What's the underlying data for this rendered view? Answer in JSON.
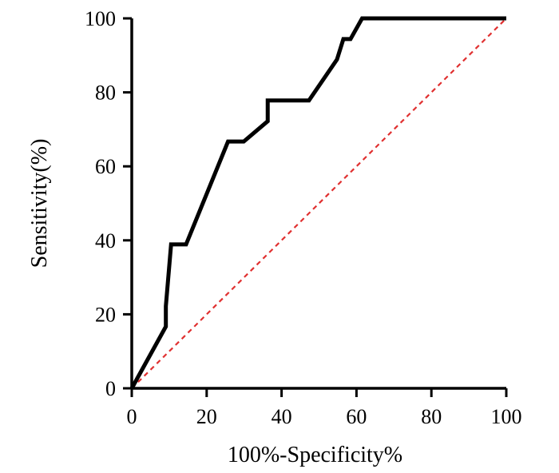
{
  "chart_data": {
    "type": "line",
    "title": "",
    "xlabel": "100%-Specificity%",
    "ylabel": "Sensitivity(%)",
    "xlim": [
      0,
      100
    ],
    "ylim": [
      0,
      100
    ],
    "xticks": [
      0,
      20,
      40,
      60,
      80,
      100
    ],
    "yticks": [
      0,
      20,
      40,
      60,
      80,
      100
    ],
    "x_tick_labels": [
      "0",
      "20",
      "40",
      "60",
      "80",
      "100"
    ],
    "y_tick_labels": [
      "0",
      "20",
      "40",
      "60",
      "80",
      "100"
    ],
    "grid": false,
    "legend": "none",
    "series": [
      {
        "style": "solid",
        "color": "#000000",
        "x": [
          0,
          9.1,
          9.1,
          10.5,
          14.5,
          25.7,
          29.9,
          36.3,
          36.3,
          47.3,
          54.8,
          56.5,
          58.4,
          61.5,
          100
        ],
        "y": [
          0,
          16.7,
          22.2,
          38.9,
          38.9,
          66.7,
          66.7,
          72.2,
          77.8,
          77.8,
          88.9,
          94.4,
          94.4,
          100,
          100
        ]
      },
      {
        "style": "dashed",
        "color": "#e03030",
        "x": [
          0,
          100
        ],
        "y": [
          0,
          100
        ]
      }
    ]
  }
}
